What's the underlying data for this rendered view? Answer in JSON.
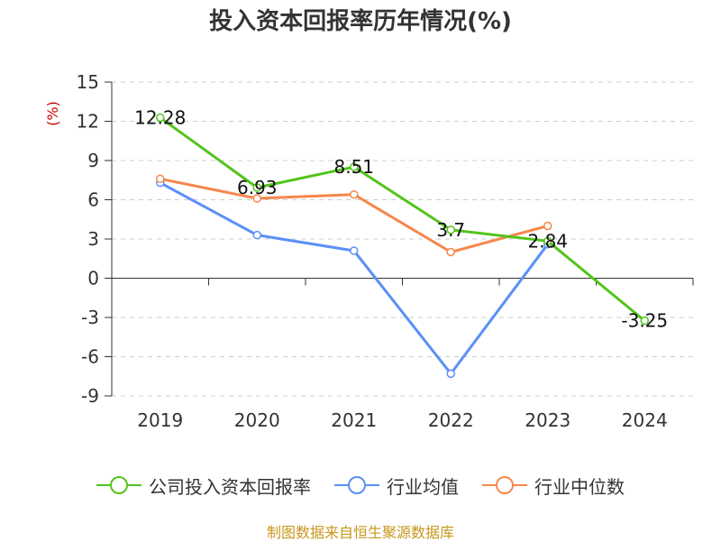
{
  "title": "投入资本回报率历年情况(%)",
  "source": "制图数据来自恒生聚源数据库",
  "chart_data": {
    "type": "line",
    "title": "投入资本回报率历年情况(%)",
    "ylabel": "(%)",
    "xlabel": "",
    "categories": [
      "2019",
      "2020",
      "2021",
      "2022",
      "2023",
      "2024"
    ],
    "ylim": [
      -9,
      15
    ],
    "yticks": [
      15,
      12,
      9,
      6,
      3,
      0,
      -3,
      -6,
      -9
    ],
    "grid": true,
    "legend_position": "bottom",
    "series": [
      {
        "name": "公司投入资本回报率",
        "color": "#52c41a",
        "values": [
          12.28,
          6.93,
          8.51,
          3.7,
          2.84,
          -3.25
        ],
        "labels": [
          "12.28",
          "6.93",
          "8.51",
          "3.7",
          "2.84",
          "-3.25"
        ]
      },
      {
        "name": "行业均值",
        "color": "#5b8ff9",
        "values": [
          7.3,
          3.3,
          2.1,
          -7.3,
          2.6,
          null
        ]
      },
      {
        "name": "行业中位数",
        "color": "#f6874c",
        "values": [
          7.6,
          6.1,
          6.4,
          2.0,
          4.0,
          null
        ]
      }
    ]
  }
}
